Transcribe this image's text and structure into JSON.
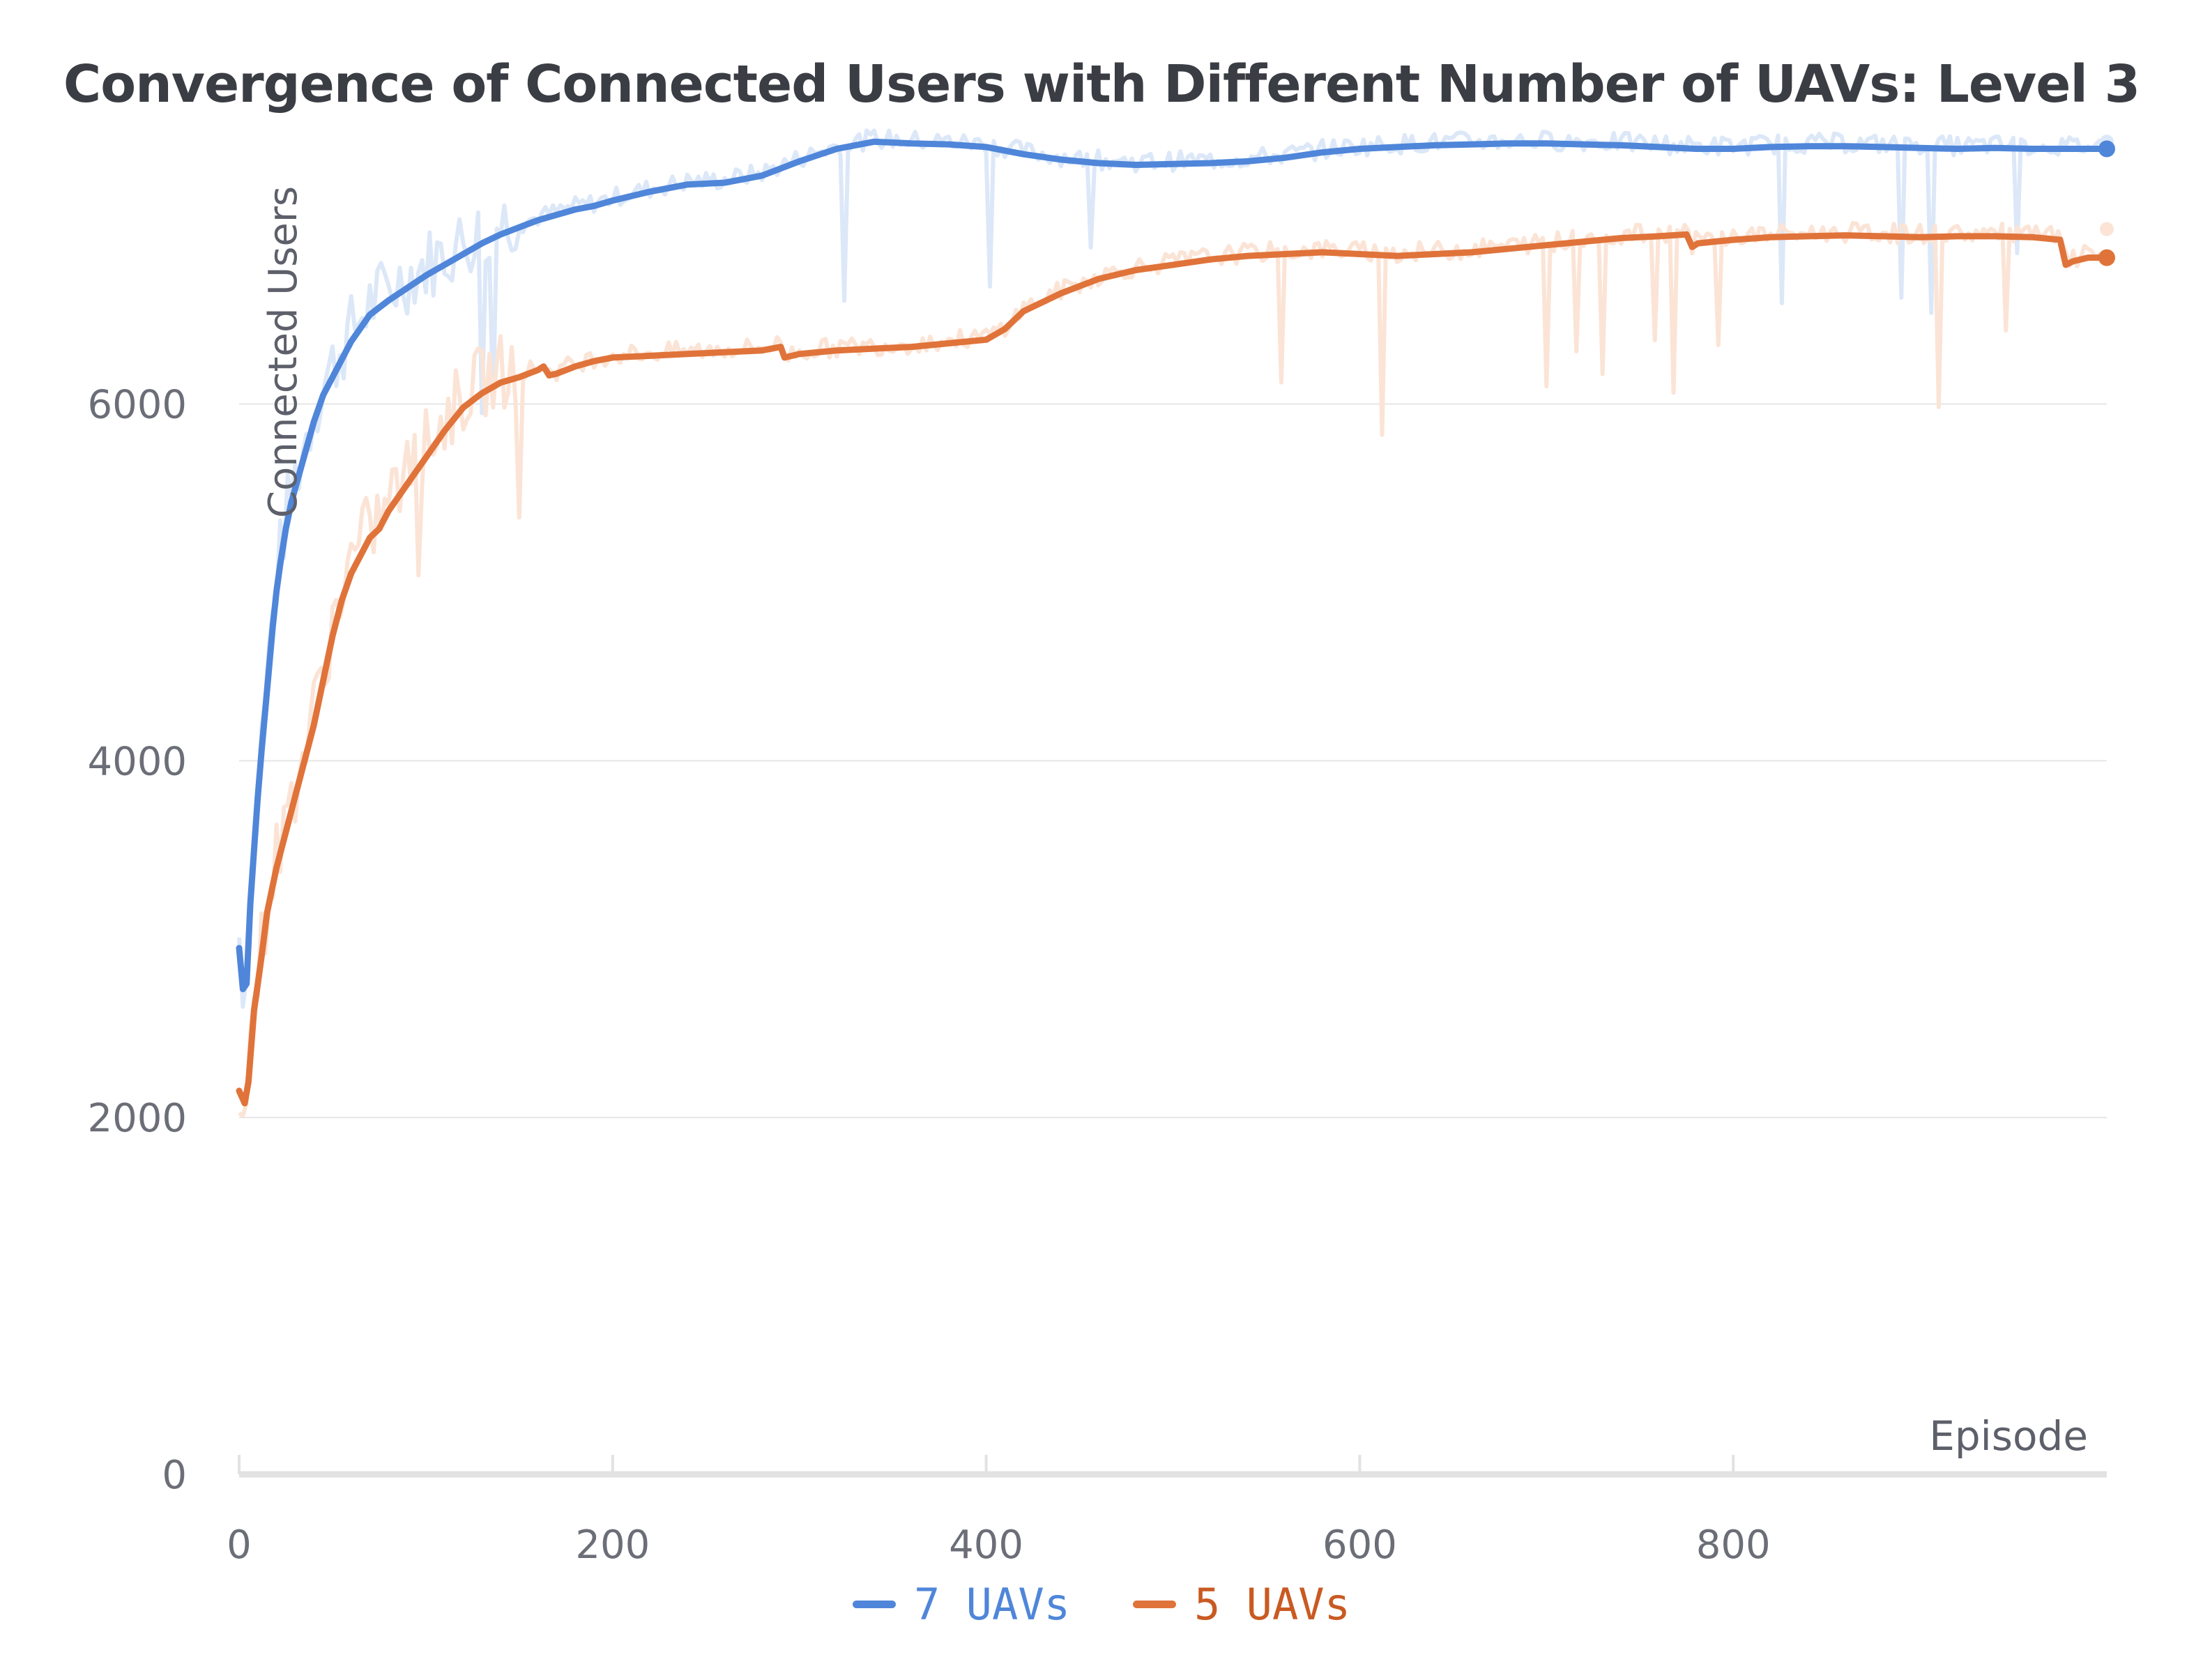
{
  "chart_data": {
    "type": "line",
    "title": "Convergence of Connected Users with Different Number of UAVs: Level 3",
    "xlabel": "Episode",
    "ylabel": "Connected Users",
    "xlim": [
      0,
      1000
    ],
    "ylim": [
      0,
      7600
    ],
    "xticks": [
      0,
      200,
      400,
      600,
      800
    ],
    "yticks": [
      0,
      2000,
      4000,
      6000
    ],
    "grid": true,
    "legend_position": "bottom-center",
    "series": [
      {
        "name": "7 UAVs",
        "color": "#4f86d9",
        "raw_color": "#dce8f8",
        "x": [
          0,
          2,
          4,
          6,
          8,
          10,
          12,
          15,
          18,
          20,
          22,
          25,
          28,
          32,
          36,
          40,
          45,
          50,
          55,
          60,
          70,
          80,
          90,
          100,
          110,
          120,
          130,
          140,
          150,
          160,
          170,
          180,
          190,
          200,
          220,
          240,
          260,
          280,
          300,
          320,
          340,
          360,
          380,
          400,
          420,
          440,
          460,
          480,
          500,
          520,
          540,
          560,
          580,
          600,
          620,
          640,
          660,
          680,
          700,
          720,
          740,
          760,
          780,
          800,
          820,
          840,
          860,
          880,
          900,
          920,
          940,
          960,
          980,
          1000
        ],
        "values": [
          2950,
          2720,
          2750,
          3200,
          3500,
          3800,
          4050,
          4400,
          4750,
          4950,
          5100,
          5300,
          5450,
          5600,
          5750,
          5900,
          6050,
          6150,
          6250,
          6350,
          6500,
          6580,
          6650,
          6720,
          6780,
          6840,
          6900,
          6950,
          6990,
          7030,
          7060,
          7090,
          7110,
          7140,
          7190,
          7230,
          7240,
          7280,
          7360,
          7430,
          7470,
          7460,
          7455,
          7440,
          7400,
          7370,
          7350,
          7340,
          7345,
          7350,
          7360,
          7380,
          7410,
          7430,
          7440,
          7450,
          7455,
          7460,
          7460,
          7455,
          7450,
          7440,
          7430,
          7430,
          7440,
          7445,
          7445,
          7440,
          7435,
          7430,
          7435,
          7430,
          7430,
          7430
        ],
        "raw_end": 7470
      },
      {
        "name": "5 UAVs",
        "color": "#e0733a",
        "raw_color": "#fbe4d6",
        "x": [
          0,
          3,
          5,
          8,
          10,
          12,
          15,
          18,
          20,
          25,
          30,
          35,
          40,
          45,
          50,
          55,
          60,
          65,
          70,
          75,
          80,
          90,
          100,
          110,
          120,
          130,
          140,
          150,
          160,
          163,
          166,
          170,
          180,
          190,
          200,
          220,
          240,
          260,
          280,
          290,
          292,
          300,
          320,
          340,
          360,
          380,
          400,
          410,
          420,
          440,
          460,
          480,
          500,
          520,
          540,
          560,
          580,
          600,
          620,
          640,
          660,
          680,
          700,
          720,
          740,
          760,
          775,
          778,
          781,
          790,
          800,
          820,
          840,
          860,
          880,
          900,
          920,
          940,
          960,
          975,
          978,
          982,
          990,
          1000
        ],
        "values": [
          2150,
          2080,
          2200,
          2600,
          2750,
          2900,
          3150,
          3300,
          3400,
          3600,
          3800,
          4000,
          4200,
          4450,
          4700,
          4900,
          5050,
          5150,
          5250,
          5300,
          5400,
          5550,
          5700,
          5850,
          5980,
          6060,
          6120,
          6150,
          6190,
          6210,
          6160,
          6170,
          6210,
          6240,
          6260,
          6270,
          6280,
          6290,
          6300,
          6320,
          6260,
          6280,
          6300,
          6310,
          6320,
          6340,
          6360,
          6420,
          6520,
          6620,
          6700,
          6750,
          6780,
          6810,
          6830,
          6840,
          6850,
          6840,
          6830,
          6840,
          6850,
          6870,
          6890,
          6910,
          6930,
          6940,
          6950,
          6880,
          6900,
          6910,
          6920,
          6935,
          6940,
          6945,
          6940,
          6935,
          6940,
          6940,
          6935,
          6920,
          6780,
          6800,
          6820,
          6820
        ],
        "raw_end": 6980
      }
    ]
  }
}
